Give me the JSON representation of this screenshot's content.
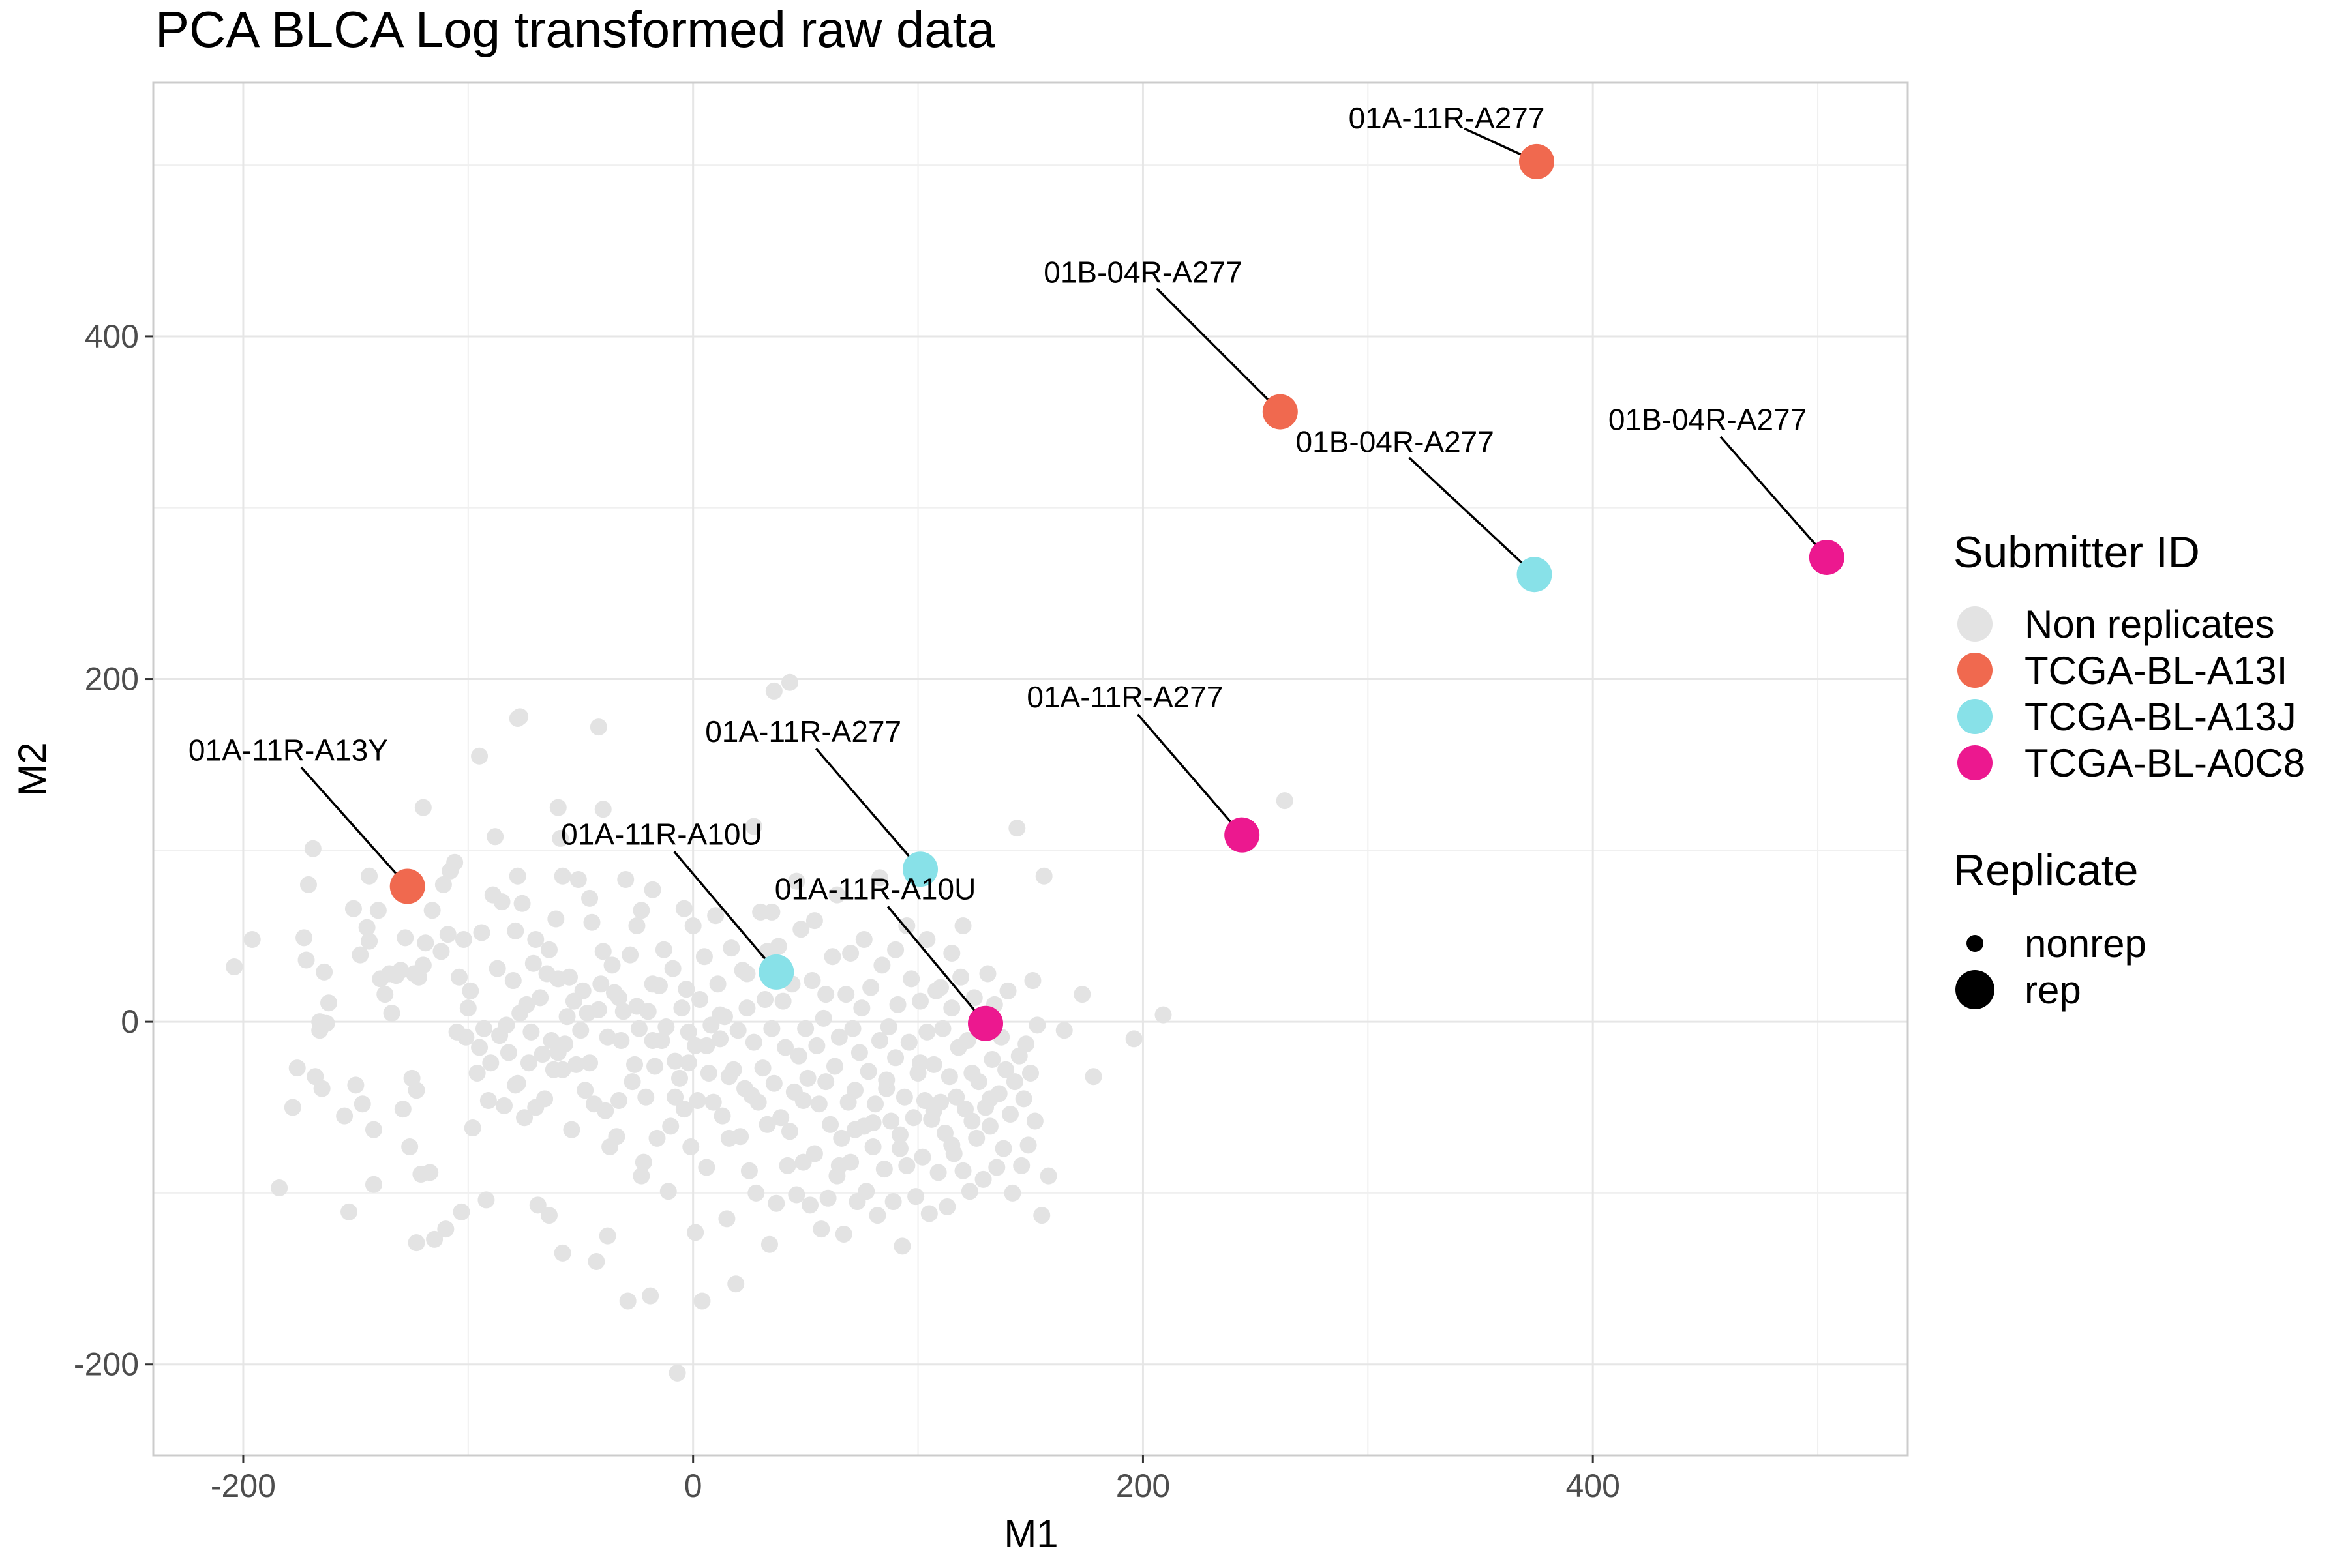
{
  "chart_data": {
    "type": "scatter",
    "title": "PCA BLCA Log transformed raw data",
    "xlabel": "M1",
    "ylabel": "M2",
    "xlim": [
      -240,
      540
    ],
    "ylim": [
      -253,
      548
    ],
    "x_ticks": [
      -200,
      0,
      200,
      400
    ],
    "y_ticks": [
      -200,
      0,
      200,
      400
    ],
    "x_tick_labels": [
      "-200",
      "0",
      "200",
      "400"
    ],
    "y_tick_labels": [
      "-200",
      "0",
      "200",
      "400"
    ],
    "grid": true,
    "legend_placement": "right",
    "colors": {
      "Non replicates": "#e3e3e3",
      "TCGA-BL-A13I": "#f0694f",
      "TCGA-BL-A13J": "#88e1e8",
      "TCGA-BL-A0C8": "#ec188f"
    },
    "legends": [
      {
        "title": "Submitter ID",
        "entries": [
          {
            "label": "Non replicates",
            "color": "#e3e3e3"
          },
          {
            "label": "TCGA-BL-A13I",
            "color": "#f0694f"
          },
          {
            "label": "TCGA-BL-A13J",
            "color": "#88e1e8"
          },
          {
            "label": "TCGA-BL-A0C8",
            "color": "#ec188f"
          }
        ]
      },
      {
        "title": "Replicate",
        "entries": [
          {
            "label": "nonrep",
            "shape": "small"
          },
          {
            "label": "rep",
            "shape": "large"
          }
        ]
      }
    ],
    "replicates": [
      {
        "group": "TCGA-BL-A13I",
        "label": "01A-11R-A277",
        "x": 375,
        "y": 502,
        "label_x": 335,
        "label_y": 526
      },
      {
        "group": "TCGA-BL-A13I",
        "label": "01B-04R-A277",
        "x": 261,
        "y": 356,
        "label_x": 200,
        "label_y": 436
      },
      {
        "group": "TCGA-BL-A13I",
        "label": "01A-11R-A13Y",
        "x": -127,
        "y": 79,
        "label_x": -180,
        "label_y": 157
      },
      {
        "group": "TCGA-BL-A13J",
        "label": "01B-04R-A277",
        "x": 374,
        "y": 261,
        "label_x": 312,
        "label_y": 337
      },
      {
        "group": "TCGA-BL-A13J",
        "label": "01A-11R-A277",
        "x": 101,
        "y": 89,
        "label_x": 49,
        "label_y": 168
      },
      {
        "group": "TCGA-BL-A13J",
        "label": "01A-11R-A10U",
        "x": 37,
        "y": 29,
        "label_x": -14,
        "label_y": 108
      },
      {
        "group": "TCGA-BL-A0C8",
        "label": "01B-04R-A277",
        "x": 504,
        "y": 271,
        "label_x": 451,
        "label_y": 350
      },
      {
        "group": "TCGA-BL-A0C8",
        "label": "01A-11R-A277",
        "x": 244,
        "y": 109,
        "label_x": 192,
        "label_y": 188
      },
      {
        "group": "TCGA-BL-A0C8",
        "label": "01A-11R-A10U",
        "x": 130,
        "y": -1,
        "label_x": 81,
        "label_y": 76
      }
    ],
    "non_replicates": [
      [
        -204,
        32
      ],
      [
        -196,
        48
      ],
      [
        -184,
        -97
      ],
      [
        -178,
        -50
      ],
      [
        -176,
        -27
      ],
      [
        -173,
        49
      ],
      [
        -172,
        36
      ],
      [
        -171,
        80
      ],
      [
        -169,
        101
      ],
      [
        -168,
        -32
      ],
      [
        -166,
        0
      ],
      [
        -166,
        -5
      ],
      [
        -165,
        -39
      ],
      [
        -164,
        29
      ],
      [
        -163,
        -1
      ],
      [
        -162,
        11
      ],
      [
        -155,
        -55
      ],
      [
        -153,
        -111
      ],
      [
        -151,
        66
      ],
      [
        -150,
        -37
      ],
      [
        -148,
        39
      ],
      [
        -147,
        -48
      ],
      [
        -145,
        55
      ],
      [
        -144,
        85
      ],
      [
        -144,
        47
      ],
      [
        -142,
        -95
      ],
      [
        -140,
        65
      ],
      [
        -139,
        25
      ],
      [
        -137,
        16
      ],
      [
        -135,
        28
      ],
      [
        -134,
        5
      ],
      [
        -132,
        27
      ],
      [
        -130,
        30
      ],
      [
        -129,
        -51
      ],
      [
        -128,
        49
      ],
      [
        -126,
        -73
      ],
      [
        -125,
        -33
      ],
      [
        -124,
        28
      ],
      [
        -123,
        -129
      ],
      [
        -122,
        26
      ],
      [
        -121,
        -89
      ],
      [
        -120,
        33
      ],
      [
        -119,
        46
      ],
      [
        -117,
        -88
      ],
      [
        -116,
        65
      ],
      [
        -115,
        -127
      ],
      [
        -112,
        41
      ],
      [
        -111,
        80
      ],
      [
        -110,
        -121
      ],
      [
        -109,
        51
      ],
      [
        -108,
        88
      ],
      [
        -106,
        93
      ],
      [
        -104,
        26
      ],
      [
        -103,
        -111
      ],
      [
        -102,
        48
      ],
      [
        -101,
        -9
      ],
      [
        -100,
        8
      ],
      [
        -99,
        18
      ],
      [
        -98,
        -62
      ],
      [
        -96,
        -30
      ],
      [
        -95,
        -15
      ],
      [
        -94,
        52
      ],
      [
        -93,
        -4
      ],
      [
        -92,
        -104
      ],
      [
        -91,
        -46
      ],
      [
        -90,
        -24
      ],
      [
        -88,
        108
      ],
      [
        -87,
        31
      ],
      [
        -86,
        -8
      ],
      [
        -85,
        70
      ],
      [
        -84,
        -49
      ],
      [
        -83,
        -2
      ],
      [
        -82,
        -18
      ],
      [
        -80,
        24
      ],
      [
        -79,
        53
      ],
      [
        -78,
        -36
      ],
      [
        -77,
        5
      ],
      [
        -76,
        69
      ],
      [
        -75,
        -56
      ],
      [
        -74,
        10
      ],
      [
        -73,
        -24
      ],
      [
        -72,
        -6
      ],
      [
        -71,
        34
      ],
      [
        -70,
        -50
      ],
      [
        -69,
        -107
      ],
      [
        -68,
        14
      ],
      [
        -67,
        -19
      ],
      [
        -66,
        -45
      ],
      [
        -65,
        28
      ],
      [
        -64,
        42
      ],
      [
        -63,
        -11
      ],
      [
        -62,
        -28
      ],
      [
        -61,
        60
      ],
      [
        -60,
        -18
      ],
      [
        -59,
        107
      ],
      [
        -58,
        -135
      ],
      [
        -57,
        -13
      ],
      [
        -56,
        3
      ],
      [
        -55,
        26
      ],
      [
        -54,
        -63
      ],
      [
        -53,
        12
      ],
      [
        -52,
        -25
      ],
      [
        -50,
        -5
      ],
      [
        -49,
        18
      ],
      [
        -48,
        -40
      ],
      [
        -47,
        5
      ],
      [
        -46,
        72
      ],
      [
        -45,
        58
      ],
      [
        -44,
        -48
      ],
      [
        -43,
        -140
      ],
      [
        -42,
        7
      ],
      [
        -41,
        22
      ],
      [
        -40,
        41
      ],
      [
        -39,
        -52
      ],
      [
        -38,
        -9
      ],
      [
        -37,
        -73
      ],
      [
        -36,
        33
      ],
      [
        -35,
        17
      ],
      [
        -34,
        -67
      ],
      [
        -33,
        -46
      ],
      [
        -32,
        -11
      ],
      [
        -31,
        6
      ],
      [
        -30,
        83
      ],
      [
        -29,
        -163
      ],
      [
        -28,
        39
      ],
      [
        -27,
        -35
      ],
      [
        -26,
        -25
      ],
      [
        -25,
        9
      ],
      [
        -24,
        -4
      ],
      [
        -23,
        65
      ],
      [
        -22,
        -82
      ],
      [
        -21,
        -44
      ],
      [
        -20,
        6
      ],
      [
        -19,
        -160
      ],
      [
        -18,
        77
      ],
      [
        -17,
        -26
      ],
      [
        -16,
        -68
      ],
      [
        -15,
        21
      ],
      [
        -14,
        -11
      ],
      [
        -13,
        42
      ],
      [
        -12,
        -3
      ],
      [
        -11,
        -99
      ],
      [
        -10,
        -61
      ],
      [
        -9,
        31
      ],
      [
        -8,
        -23
      ],
      [
        -7,
        -205
      ],
      [
        -6,
        -33
      ],
      [
        -5,
        8
      ],
      [
        -4,
        -51
      ],
      [
        -3,
        19
      ],
      [
        -2,
        -6
      ],
      [
        -1,
        -73
      ],
      [
        0,
        56
      ],
      [
        1,
        -14
      ],
      [
        2,
        -46
      ],
      [
        3,
        13
      ],
      [
        4,
        -163
      ],
      [
        5,
        38
      ],
      [
        6,
        -85
      ],
      [
        7,
        -30
      ],
      [
        8,
        -2
      ],
      [
        9,
        -47
      ],
      [
        10,
        62
      ],
      [
        11,
        22
      ],
      [
        12,
        -10
      ],
      [
        13,
        -55
      ],
      [
        14,
        3
      ],
      [
        15,
        -115
      ],
      [
        16,
        -68
      ],
      [
        17,
        43
      ],
      [
        18,
        -28
      ],
      [
        19,
        -153
      ],
      [
        20,
        -5
      ],
      [
        21,
        -67
      ],
      [
        22,
        30
      ],
      [
        23,
        -39
      ],
      [
        24,
        8
      ],
      [
        25,
        -87
      ],
      [
        26,
        -43
      ],
      [
        27,
        -12
      ],
      [
        28,
        -100
      ],
      [
        29,
        -47
      ],
      [
        30,
        64
      ],
      [
        31,
        -27
      ],
      [
        32,
        13
      ],
      [
        33,
        -60
      ],
      [
        34,
        -130
      ],
      [
        35,
        -4
      ],
      [
        36,
        -36
      ],
      [
        37,
        -106
      ],
      [
        38,
        44
      ],
      [
        39,
        -56
      ],
      [
        40,
        12
      ],
      [
        41,
        -15
      ],
      [
        42,
        -84
      ],
      [
        43,
        -64
      ],
      [
        44,
        22
      ],
      [
        45,
        -41
      ],
      [
        46,
        -101
      ],
      [
        47,
        -20
      ],
      [
        48,
        54
      ],
      [
        49,
        -82
      ],
      [
        50,
        -4
      ],
      [
        51,
        -33
      ],
      [
        52,
        -107
      ],
      [
        53,
        24
      ],
      [
        54,
        -77
      ],
      [
        55,
        -14
      ],
      [
        56,
        -48
      ],
      [
        57,
        -121
      ],
      [
        58,
        2
      ],
      [
        59,
        -35
      ],
      [
        60,
        -103
      ],
      [
        61,
        -60
      ],
      [
        62,
        38
      ],
      [
        63,
        -26
      ],
      [
        64,
        -90
      ],
      [
        65,
        -9
      ],
      [
        66,
        -68
      ],
      [
        67,
        -124
      ],
      [
        68,
        16
      ],
      [
        69,
        -47
      ],
      [
        70,
        -82
      ],
      [
        71,
        -4
      ],
      [
        72,
        -40
      ],
      [
        73,
        -105
      ],
      [
        74,
        -18
      ],
      [
        75,
        8
      ],
      [
        76,
        -61
      ],
      [
        77,
        -99
      ],
      [
        78,
        -29
      ],
      [
        79,
        20
      ],
      [
        80,
        -73
      ],
      [
        81,
        -48
      ],
      [
        82,
        -113
      ],
      [
        83,
        -11
      ],
      [
        84,
        33
      ],
      [
        85,
        -86
      ],
      [
        86,
        -39
      ],
      [
        87,
        -3
      ],
      [
        88,
        -58
      ],
      [
        89,
        -105
      ],
      [
        90,
        -21
      ],
      [
        91,
        10
      ],
      [
        92,
        -66
      ],
      [
        93,
        -131
      ],
      [
        94,
        -44
      ],
      [
        95,
        -84
      ],
      [
        96,
        -12
      ],
      [
        97,
        25
      ],
      [
        98,
        -56
      ],
      [
        99,
        -102
      ],
      [
        100,
        -30
      ],
      [
        101,
        12
      ],
      [
        102,
        -79
      ],
      [
        103,
        -46
      ],
      [
        104,
        -6
      ],
      [
        105,
        -112
      ],
      [
        106,
        -57
      ],
      [
        107,
        -25
      ],
      [
        108,
        18
      ],
      [
        109,
        -88
      ],
      [
        110,
        -47
      ],
      [
        111,
        -4
      ],
      [
        112,
        -65
      ],
      [
        113,
        -108
      ],
      [
        114,
        -32
      ],
      [
        115,
        8
      ],
      [
        116,
        -77
      ],
      [
        117,
        -44
      ],
      [
        118,
        -15
      ],
      [
        119,
        26
      ],
      [
        120,
        -87
      ],
      [
        121,
        -51
      ],
      [
        122,
        -11
      ],
      [
        123,
        -99
      ],
      [
        124,
        -30
      ],
      [
        125,
        14
      ],
      [
        126,
        -68
      ],
      [
        127,
        -35
      ],
      [
        128,
        -3
      ],
      [
        129,
        -92
      ],
      [
        130,
        -50
      ],
      [
        131,
        28
      ],
      [
        132,
        -61
      ],
      [
        133,
        -22
      ],
      [
        134,
        10
      ],
      [
        135,
        -85
      ],
      [
        136,
        -42
      ],
      [
        137,
        -9
      ],
      [
        138,
        -74
      ],
      [
        139,
        -28
      ],
      [
        140,
        18
      ],
      [
        141,
        -54
      ],
      [
        142,
        -100
      ],
      [
        143,
        -35
      ],
      [
        144,
        113
      ],
      [
        145,
        -20
      ],
      [
        146,
        -84
      ],
      [
        147,
        -45
      ],
      [
        148,
        -13
      ],
      [
        149,
        -72
      ],
      [
        150,
        -30
      ],
      [
        151,
        24
      ],
      [
        152,
        -58
      ],
      [
        153,
        -2
      ],
      [
        155,
        -113
      ],
      [
        156,
        85
      ],
      [
        158,
        -90
      ],
      [
        165,
        -5
      ],
      [
        173,
        16
      ],
      [
        178,
        -32
      ],
      [
        196,
        -10
      ],
      [
        209,
        4
      ],
      [
        263,
        129
      ],
      [
        -58,
        -28
      ],
      [
        -60,
        125
      ],
      [
        -58,
        85
      ],
      [
        -78,
        85
      ],
      [
        -89,
        74
      ],
      [
        -105,
        -6
      ],
      [
        -70,
        48
      ],
      [
        -51,
        83
      ],
      [
        -40,
        124
      ],
      [
        -33,
        14
      ],
      [
        -25,
        56
      ],
      [
        -18,
        22
      ],
      [
        -4,
        66
      ],
      [
        12,
        4
      ],
      [
        24,
        28
      ],
      [
        35,
        64
      ],
      [
        46,
        82
      ],
      [
        54,
        59
      ],
      [
        59,
        16
      ],
      [
        64,
        74
      ],
      [
        70,
        40
      ],
      [
        76,
        48
      ],
      [
        83,
        84
      ],
      [
        90,
        42
      ],
      [
        95,
        56
      ],
      [
        104,
        48
      ],
      [
        110,
        20
      ],
      [
        115,
        40
      ],
      [
        120,
        56
      ],
      [
        -120,
        125
      ],
      [
        -95,
        155
      ],
      [
        -78,
        177
      ],
      [
        -42,
        172
      ],
      [
        -46,
        -24
      ],
      [
        -8,
        -44
      ],
      [
        6,
        -14
      ],
      [
        27,
        114
      ],
      [
        36,
        193
      ],
      [
        43,
        198
      ],
      [
        -79,
        -37
      ],
      [
        -60,
        25
      ],
      [
        -18,
        -11
      ],
      [
        -2,
        -24
      ],
      [
        16,
        -32
      ],
      [
        33,
        41
      ],
      [
        49,
        -46
      ],
      [
        65,
        -84
      ],
      [
        72,
        -63
      ],
      [
        80,
        -59
      ],
      [
        86,
        -34
      ],
      [
        92,
        -74
      ],
      [
        101,
        -24
      ],
      [
        107,
        -52
      ],
      [
        115,
        -72
      ],
      [
        124,
        -58
      ],
      [
        132,
        -45
      ],
      [
        -77,
        178
      ],
      [
        -123,
        -40
      ],
      [
        -142,
        -63
      ],
      [
        -64,
        -113
      ],
      [
        -38,
        -125
      ],
      [
        -23,
        -90
      ],
      [
        1,
        -123
      ]
    ]
  }
}
